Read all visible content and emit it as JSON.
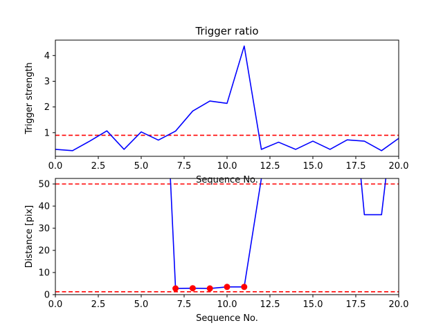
{
  "chart_data": [
    {
      "type": "line",
      "title": "Trigger ratio",
      "xlabel": "Sequence No.",
      "ylabel": "Trigger strength",
      "xlim": [
        0,
        20
      ],
      "ylim": [
        0.08,
        4.6
      ],
      "xticks": [
        "0.0",
        "2.5",
        "5.0",
        "7.5",
        "10.0",
        "12.5",
        "15.0",
        "17.5",
        "20.0"
      ],
      "yticks": [
        1,
        2,
        3,
        4
      ],
      "grid": false,
      "series": [
        {
          "color": "#0000ff",
          "style": "solid",
          "x": [
            0,
            1,
            2,
            3,
            4,
            5,
            6,
            7,
            8,
            9,
            10,
            11,
            12,
            13,
            14,
            15,
            16,
            17,
            18,
            19,
            20
          ],
          "y": [
            0.35,
            0.3,
            0.67,
            1.07,
            0.35,
            1.03,
            0.71,
            1.06,
            1.84,
            2.23,
            2.14,
            4.37,
            0.35,
            0.63,
            0.35,
            0.67,
            0.35,
            0.72,
            0.67,
            0.3,
            0.78
          ]
        }
      ],
      "hlines": [
        {
          "y": 0.9,
          "color": "#ff0000",
          "style": "dashed"
        }
      ]
    },
    {
      "type": "line",
      "title": "",
      "xlabel": "Sequence No.",
      "ylabel": "Distance [pix]",
      "xlim": [
        0,
        20
      ],
      "ylim": [
        0,
        52.5
      ],
      "xticks": [
        "0.0",
        "2.5",
        "5.0",
        "7.5",
        "10.0",
        "12.5",
        "15.0",
        "17.5",
        "20.0"
      ],
      "yticks": [
        0,
        10,
        20,
        30,
        40,
        50
      ],
      "grid": false,
      "series": [
        {
          "color": "#0000ff",
          "style": "solid",
          "x": [
            6.7,
            7,
            8,
            9,
            10,
            11,
            12.0
          ],
          "y": [
            52.5,
            2.8,
            2.9,
            2.8,
            3.5,
            3.5,
            52.5
          ]
        },
        {
          "color": "#0000ff",
          "style": "solid",
          "x": [
            17.8,
            18,
            19,
            19.25
          ],
          "y": [
            52.5,
            36.1,
            36.1,
            52.5
          ]
        }
      ],
      "markers": {
        "color": "#ff0000",
        "x": [
          7,
          8,
          9,
          10,
          11
        ],
        "y": [
          2.8,
          2.9,
          2.8,
          3.5,
          3.5
        ]
      },
      "hlines": [
        {
          "y": 50,
          "color": "#ff0000",
          "style": "dashed"
        },
        {
          "y": 1.3,
          "color": "#ff0000",
          "style": "dashed"
        }
      ]
    }
  ]
}
